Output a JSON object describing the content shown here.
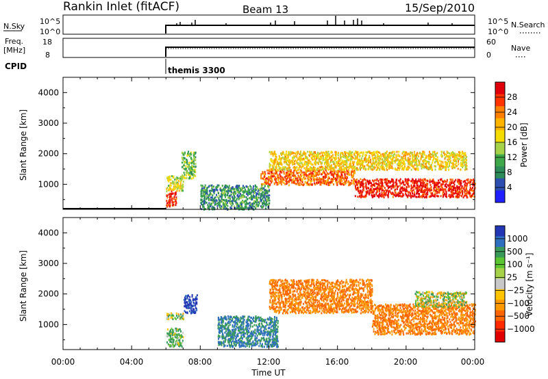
{
  "header": {
    "station": "Rankin Inlet (fitACF)",
    "beam": "Beam 13",
    "date": "15/Sep/2010"
  },
  "panels": {
    "nsky": {
      "left_label": "N.Sky",
      "right_label": "N.Search",
      "left_ticks": [
        "10^5",
        "10^0"
      ],
      "right_ticks": [
        "10^5",
        "10^0"
      ]
    },
    "freq": {
      "left_label_line1": "Freq.",
      "left_label_line2": "[MHz]",
      "right_label": "Nave",
      "left_ticks": [
        "18",
        "8"
      ],
      "right_ticks": [
        "60",
        "0"
      ]
    },
    "cpid": {
      "label": "CPID",
      "program": "themis 3300"
    }
  },
  "axes": {
    "ylabel": "Slant Range [km]",
    "yticks": [
      "1000",
      "2000",
      "3000",
      "4000"
    ],
    "xlabel": "Time UT",
    "xticks": [
      "00:00",
      "04:00",
      "08:00",
      "12:00",
      "16:00",
      "20:00",
      "00:00"
    ]
  },
  "colorbars": {
    "power": {
      "label": "Power [dB]",
      "ticks": [
        "28",
        "24",
        "20",
        "16",
        "12",
        "8",
        "4"
      ],
      "colors": [
        "#e0000b",
        "#ff3300",
        "#ff8000",
        "#ffb400",
        "#f5dc00",
        "#a6d24a",
        "#3fa84a",
        "#2d8c5a",
        "#2c4fb0",
        "#1f1fff"
      ]
    },
    "velocity": {
      "label": "Velocity [m s⁻¹]",
      "ticks": [
        "1000",
        "500",
        "100",
        "25",
        "−25",
        "−100",
        "−500",
        "−1000"
      ],
      "colors": [
        "#2337b4",
        "#2f6fc0",
        "#3a9a5a",
        "#5cc632",
        "#a6d24a",
        "#c8c8c8",
        "#ffc400",
        "#ff9900",
        "#ff6600",
        "#ff2a00",
        "#e00000"
      ]
    }
  },
  "chart_data": [
    {
      "type": "heatmap",
      "title": "Power [dB]",
      "xlabel": "Time UT",
      "ylabel": "Slant Range [km]",
      "xlim": [
        "00:00",
        "24:00"
      ],
      "ylim": [
        180,
        4500
      ],
      "zlim": [
        0,
        30
      ],
      "regions": [
        {
          "t0": 6.0,
          "t1": 6.6,
          "r0": 300,
          "r1": 800,
          "value": 28
        },
        {
          "t0": 6.0,
          "t1": 7.0,
          "r0": 800,
          "r1": 1300,
          "value": 16
        },
        {
          "t0": 6.9,
          "t1": 7.7,
          "r0": 1200,
          "r1": 2100,
          "value": 12
        },
        {
          "t0": 11.5,
          "t1": 17.0,
          "r0": 1000,
          "r1": 1500,
          "value": 24
        },
        {
          "t0": 12.0,
          "t1": 23.5,
          "r0": 1500,
          "r1": 2100,
          "value": 18
        },
        {
          "t0": 17.0,
          "t1": 24.0,
          "r0": 600,
          "r1": 1200,
          "value": 28
        },
        {
          "t0": 8.0,
          "t1": 12.0,
          "r0": 200,
          "r1": 1000,
          "value": 8
        }
      ]
    },
    {
      "type": "heatmap",
      "title": "Velocity [m s⁻¹]",
      "xlabel": "Time UT",
      "ylabel": "Slant Range [km]",
      "xlim": [
        "00:00",
        "24:00"
      ],
      "ylim": [
        180,
        4500
      ],
      "zlim": [
        -1000,
        1000
      ],
      "regions": [
        {
          "t0": 6.0,
          "t1": 7.0,
          "r0": 300,
          "r1": 900,
          "value": 100
        },
        {
          "t0": 6.0,
          "t1": 7.0,
          "r0": 1200,
          "r1": 1400,
          "value": 0
        },
        {
          "t0": 7.0,
          "t1": 7.8,
          "r0": 1400,
          "r1": 2000,
          "value": 800
        },
        {
          "t0": 9.0,
          "t1": 12.5,
          "r0": 300,
          "r1": 1300,
          "value": 300
        },
        {
          "t0": 12.0,
          "t1": 18.0,
          "r0": 1400,
          "r1": 2500,
          "value": -300
        },
        {
          "t0": 18.0,
          "t1": 24.0,
          "r0": 700,
          "r1": 1700,
          "value": -300
        },
        {
          "t0": 20.5,
          "t1": 23.5,
          "r0": 1600,
          "r1": 2100,
          "value": 0
        }
      ]
    }
  ]
}
